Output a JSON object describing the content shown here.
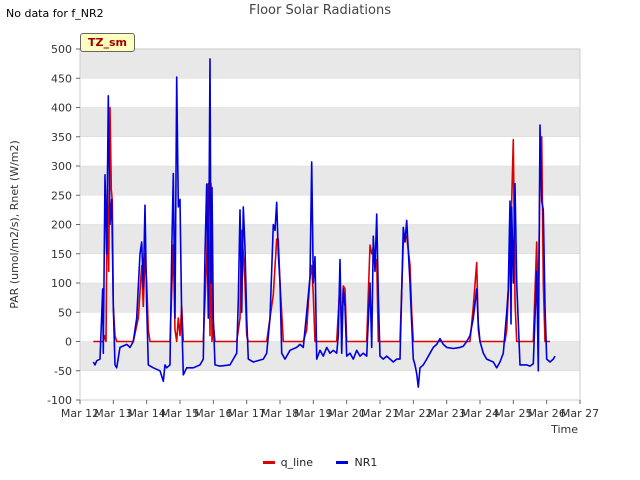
{
  "note": "No data for f_NR2",
  "badge": "TZ_sm",
  "colors": {
    "q_line": "#dd0000",
    "NR1": "#0000dd",
    "band": "#e8e8e8",
    "grid": "#d8d8d8"
  },
  "chart_data": {
    "type": "line",
    "title": "Floor Solar Radiations",
    "xlabel": "Time",
    "ylabel": "PAR (umol/m2/s), Rnet (W/m2)",
    "xlim": [
      12,
      27
    ],
    "ylim": [
      -100,
      500
    ],
    "yticks": [
      -100,
      -50,
      0,
      50,
      100,
      150,
      200,
      250,
      300,
      350,
      400,
      450,
      500
    ],
    "xticks": [
      {
        "value": 12,
        "label": "Mar 12"
      },
      {
        "value": 13,
        "label": "Mar 13"
      },
      {
        "value": 14,
        "label": "Mar 14"
      },
      {
        "value": 15,
        "label": "Mar 15"
      },
      {
        "value": 16,
        "label": "Mar 16"
      },
      {
        "value": 17,
        "label": "Mar 17"
      },
      {
        "value": 18,
        "label": "Mar 18"
      },
      {
        "value": 19,
        "label": "Mar 19"
      },
      {
        "value": 20,
        "label": "Mar 20"
      },
      {
        "value": 21,
        "label": "Mar 21"
      },
      {
        "value": 22,
        "label": "Mar 22"
      },
      {
        "value": 23,
        "label": "Mar 23"
      },
      {
        "value": 24,
        "label": "Mar 24"
      },
      {
        "value": 25,
        "label": "Mar 25"
      },
      {
        "value": 26,
        "label": "Mar 26"
      },
      {
        "value": 27,
        "label": "Mar 27"
      }
    ],
    "legend_position": "bottom-center",
    "series": [
      {
        "name": "q_line",
        "color": "#dd0000",
        "points": [
          [
            12.4,
            0
          ],
          [
            12.7,
            0
          ],
          [
            12.75,
            10
          ],
          [
            12.78,
            0
          ],
          [
            12.82,
            260
          ],
          [
            12.86,
            120
          ],
          [
            12.9,
            400
          ],
          [
            12.94,
            260
          ],
          [
            12.97,
            240
          ],
          [
            13.0,
            60
          ],
          [
            13.05,
            10
          ],
          [
            13.1,
            0
          ],
          [
            13.6,
            0
          ],
          [
            13.75,
            40
          ],
          [
            13.85,
            130
          ],
          [
            13.9,
            60
          ],
          [
            13.95,
            150
          ],
          [
            14.0,
            100
          ],
          [
            14.05,
            20
          ],
          [
            14.1,
            0
          ],
          [
            14.7,
            0
          ],
          [
            14.8,
            165
          ],
          [
            14.85,
            20
          ],
          [
            14.9,
            0
          ],
          [
            14.95,
            40
          ],
          [
            15.0,
            10
          ],
          [
            15.05,
            60
          ],
          [
            15.1,
            0
          ],
          [
            15.7,
            0
          ],
          [
            15.8,
            140
          ],
          [
            15.85,
            270
          ],
          [
            15.9,
            10
          ],
          [
            15.93,
            270
          ],
          [
            15.96,
            0
          ],
          [
            16.0,
            30
          ],
          [
            16.05,
            0
          ],
          [
            16.7,
            0
          ],
          [
            16.8,
            40
          ],
          [
            16.85,
            190
          ],
          [
            16.9,
            150
          ],
          [
            16.95,
            100
          ],
          [
            17.0,
            10
          ],
          [
            17.05,
            0
          ],
          [
            17.6,
            0
          ],
          [
            17.8,
            80
          ],
          [
            17.9,
            175
          ],
          [
            17.95,
            175
          ],
          [
            18.0,
            100
          ],
          [
            18.1,
            0
          ],
          [
            18.7,
            0
          ],
          [
            18.8,
            20
          ],
          [
            18.9,
            110
          ],
          [
            18.95,
            130
          ],
          [
            19.0,
            80
          ],
          [
            19.05,
            0
          ],
          [
            19.7,
            0
          ],
          [
            19.8,
            100
          ],
          [
            19.85,
            20
          ],
          [
            19.9,
            95
          ],
          [
            19.95,
            90
          ],
          [
            20.0,
            0
          ],
          [
            20.6,
            0
          ],
          [
            20.7,
            165
          ],
          [
            20.75,
            150
          ],
          [
            20.8,
            160
          ],
          [
            20.85,
            130
          ],
          [
            20.9,
            140
          ],
          [
            20.95,
            0
          ],
          [
            21.6,
            0
          ],
          [
            21.7,
            170
          ],
          [
            21.8,
            180
          ],
          [
            21.9,
            130
          ],
          [
            21.95,
            50
          ],
          [
            22.0,
            0
          ],
          [
            23.7,
            0
          ],
          [
            23.8,
            60
          ],
          [
            23.9,
            135
          ],
          [
            23.95,
            20
          ],
          [
            24.0,
            0
          ],
          [
            24.6,
            0
          ],
          [
            24.75,
            0
          ],
          [
            24.8,
            20
          ],
          [
            24.9,
            150
          ],
          [
            24.95,
            240
          ],
          [
            25.0,
            345
          ],
          [
            25.05,
            70
          ],
          [
            25.1,
            0
          ],
          [
            25.6,
            0
          ],
          [
            25.7,
            170
          ],
          [
            25.75,
            40
          ],
          [
            25.8,
            300
          ],
          [
            25.85,
            350
          ],
          [
            25.9,
            100
          ],
          [
            25.95,
            0
          ],
          [
            26.1,
            0
          ]
        ]
      },
      {
        "name": "NR1",
        "color": "#0000dd",
        "points": [
          [
            12.4,
            -35
          ],
          [
            12.45,
            -40
          ],
          [
            12.5,
            -33
          ],
          [
            12.6,
            -30
          ],
          [
            12.68,
            90
          ],
          [
            12.7,
            -20
          ],
          [
            12.75,
            285
          ],
          [
            12.8,
            150
          ],
          [
            12.85,
            420
          ],
          [
            12.9,
            200
          ],
          [
            12.95,
            243
          ],
          [
            13.0,
            60
          ],
          [
            13.05,
            -40
          ],
          [
            13.1,
            -45
          ],
          [
            13.2,
            -10
          ],
          [
            13.4,
            -5
          ],
          [
            13.5,
            -10
          ],
          [
            13.6,
            0
          ],
          [
            13.7,
            40
          ],
          [
            13.8,
            150
          ],
          [
            13.85,
            170
          ],
          [
            13.9,
            90
          ],
          [
            13.95,
            233
          ],
          [
            14.0,
            60
          ],
          [
            14.05,
            -40
          ],
          [
            14.2,
            -45
          ],
          [
            14.4,
            -50
          ],
          [
            14.5,
            -68
          ],
          [
            14.55,
            -40
          ],
          [
            14.6,
            -45
          ],
          [
            14.7,
            -40
          ],
          [
            14.75,
            150
          ],
          [
            14.8,
            287
          ],
          [
            14.85,
            40
          ],
          [
            14.9,
            452
          ],
          [
            14.95,
            230
          ],
          [
            15.0,
            243
          ],
          [
            15.05,
            40
          ],
          [
            15.1,
            -57
          ],
          [
            15.2,
            -45
          ],
          [
            15.4,
            -45
          ],
          [
            15.6,
            -40
          ],
          [
            15.7,
            -30
          ],
          [
            15.75,
            150
          ],
          [
            15.8,
            269
          ],
          [
            15.85,
            40
          ],
          [
            15.9,
            483
          ],
          [
            15.93,
            100
          ],
          [
            15.96,
            263
          ],
          [
            16.0,
            40
          ],
          [
            16.05,
            -40
          ],
          [
            16.2,
            -42
          ],
          [
            16.5,
            -40
          ],
          [
            16.6,
            -30
          ],
          [
            16.7,
            -20
          ],
          [
            16.75,
            70
          ],
          [
            16.8,
            225
          ],
          [
            16.85,
            50
          ],
          [
            16.9,
            230
          ],
          [
            16.95,
            160
          ],
          [
            17.0,
            40
          ],
          [
            17.05,
            -30
          ],
          [
            17.2,
            -35
          ],
          [
            17.5,
            -30
          ],
          [
            17.6,
            -20
          ],
          [
            17.7,
            40
          ],
          [
            17.8,
            200
          ],
          [
            17.85,
            190
          ],
          [
            17.9,
            238
          ],
          [
            17.95,
            150
          ],
          [
            18.0,
            100
          ],
          [
            18.05,
            -20
          ],
          [
            18.15,
            -30
          ],
          [
            18.3,
            -15
          ],
          [
            18.5,
            -10
          ],
          [
            18.6,
            -5
          ],
          [
            18.7,
            -10
          ],
          [
            18.8,
            50
          ],
          [
            18.9,
            110
          ],
          [
            18.95,
            307
          ],
          [
            19.0,
            100
          ],
          [
            19.05,
            145
          ],
          [
            19.1,
            -30
          ],
          [
            19.2,
            -15
          ],
          [
            19.3,
            -25
          ],
          [
            19.4,
            -10
          ],
          [
            19.5,
            -20
          ],
          [
            19.6,
            -15
          ],
          [
            19.7,
            -20
          ],
          [
            19.75,
            10
          ],
          [
            19.8,
            140
          ],
          [
            19.85,
            -20
          ],
          [
            19.9,
            90
          ],
          [
            19.95,
            60
          ],
          [
            20.0,
            -25
          ],
          [
            20.1,
            -20
          ],
          [
            20.2,
            -30
          ],
          [
            20.3,
            -15
          ],
          [
            20.4,
            -25
          ],
          [
            20.5,
            -20
          ],
          [
            20.6,
            -25
          ],
          [
            20.7,
            100
          ],
          [
            20.75,
            -10
          ],
          [
            20.8,
            180
          ],
          [
            20.85,
            120
          ],
          [
            20.9,
            218
          ],
          [
            20.95,
            80
          ],
          [
            21.0,
            -25
          ],
          [
            21.1,
            -30
          ],
          [
            21.2,
            -25
          ],
          [
            21.4,
            -35
          ],
          [
            21.5,
            -30
          ],
          [
            21.6,
            -30
          ],
          [
            21.7,
            195
          ],
          [
            21.75,
            170
          ],
          [
            21.8,
            207
          ],
          [
            21.9,
            100
          ],
          [
            21.95,
            30
          ],
          [
            22.0,
            -30
          ],
          [
            22.05,
            -40
          ],
          [
            22.1,
            -55
          ],
          [
            22.15,
            -78
          ],
          [
            22.2,
            -45
          ],
          [
            22.3,
            -40
          ],
          [
            22.4,
            -30
          ],
          [
            22.5,
            -20
          ],
          [
            22.6,
            -10
          ],
          [
            22.7,
            -5
          ],
          [
            22.8,
            5
          ],
          [
            22.9,
            -5
          ],
          [
            23.0,
            -10
          ],
          [
            23.2,
            -12
          ],
          [
            23.4,
            -10
          ],
          [
            23.5,
            -8
          ],
          [
            23.6,
            0
          ],
          [
            23.7,
            10
          ],
          [
            23.8,
            40
          ],
          [
            23.9,
            90
          ],
          [
            23.95,
            30
          ],
          [
            24.0,
            0
          ],
          [
            24.1,
            -20
          ],
          [
            24.2,
            -30
          ],
          [
            24.4,
            -35
          ],
          [
            24.5,
            -45
          ],
          [
            24.6,
            -35
          ],
          [
            24.7,
            -20
          ],
          [
            24.8,
            50
          ],
          [
            24.85,
            90
          ],
          [
            24.9,
            240
          ],
          [
            24.93,
            30
          ],
          [
            24.95,
            230
          ],
          [
            25.0,
            100
          ],
          [
            25.05,
            270
          ],
          [
            25.1,
            100
          ],
          [
            25.2,
            -40
          ],
          [
            25.4,
            -40
          ],
          [
            25.5,
            -42
          ],
          [
            25.6,
            -38
          ],
          [
            25.7,
            120
          ],
          [
            25.75,
            -50
          ],
          [
            25.8,
            370
          ],
          [
            25.85,
            240
          ],
          [
            25.9,
            225
          ],
          [
            25.95,
            60
          ],
          [
            26.0,
            -30
          ],
          [
            26.1,
            -35
          ],
          [
            26.2,
            -30
          ],
          [
            26.25,
            -25
          ]
        ]
      }
    ]
  }
}
